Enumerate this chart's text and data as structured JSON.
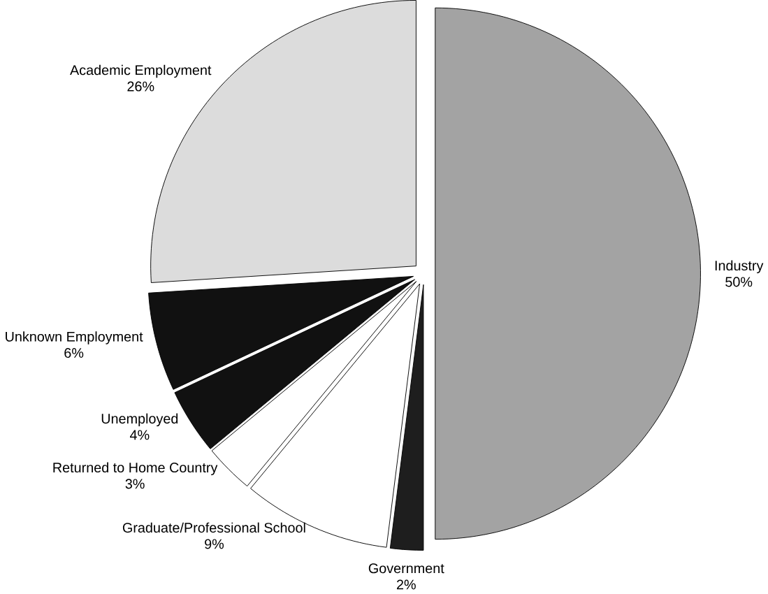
{
  "chart_data": {
    "type": "pie",
    "categories": [
      "Industry",
      "Government",
      "Graduate/Professional School",
      "Returned to Home Country",
      "Unemployed",
      "Unknown Employment",
      "Academic Employment"
    ],
    "values": [
      50,
      2,
      9,
      3,
      4,
      6,
      26
    ],
    "colors": [
      "#a3a3a3",
      "#1e1e1e",
      "#ffffff",
      "#ffffff",
      "#111111",
      "#111111",
      "#dcdcdc"
    ],
    "value_labels": [
      "50%",
      "2%",
      "9%",
      "3%",
      "4%",
      "6%",
      "26%"
    ]
  }
}
